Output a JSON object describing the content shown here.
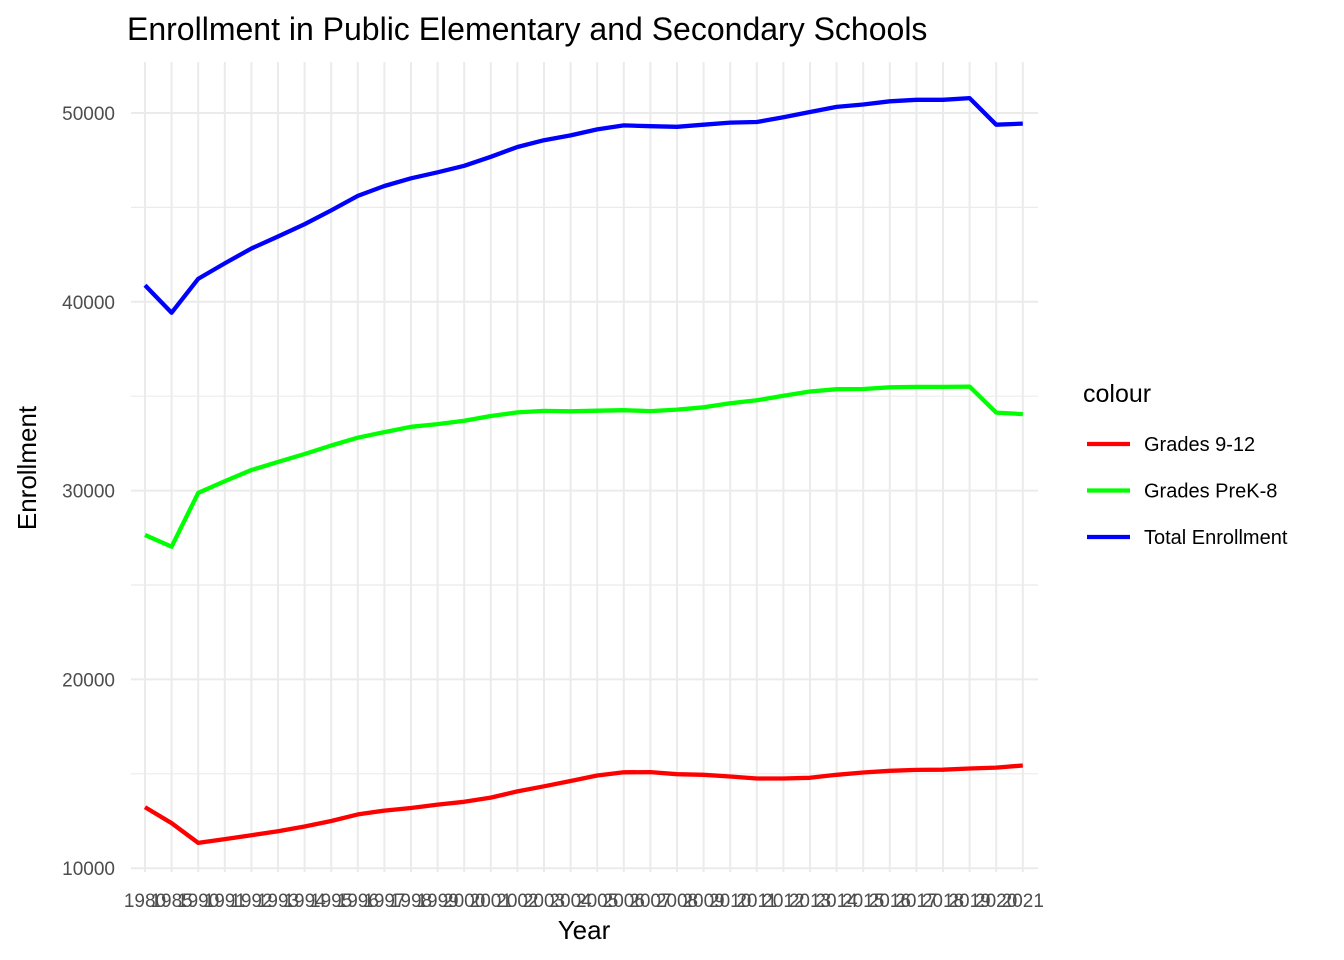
{
  "chart_data": {
    "type": "line",
    "title": "Enrollment in Public Elementary and Secondary Schools",
    "xlabel": "Year",
    "ylabel": "Enrollment",
    "grid": true,
    "legend_placement": "right",
    "legend_title": "colour",
    "ylim": [
      9800,
      52700
    ],
    "y_ticks": [
      10000,
      20000,
      30000,
      40000,
      50000
    ],
    "x": [
      1980,
      1985,
      1990,
      1991,
      1992,
      1993,
      1994,
      1995,
      1996,
      1997,
      1998,
      1999,
      2000,
      2001,
      2002,
      2003,
      2004,
      2005,
      2006,
      2007,
      2008,
      2009,
      2010,
      2011,
      2012,
      2013,
      2014,
      2015,
      2016,
      2017,
      2018,
      2019,
      2020,
      2021
    ],
    "x_tick_labels": [
      "1980",
      "1985",
      "1990",
      "1991",
      "1992",
      "1993",
      "1994",
      "1995",
      "1996",
      "1997",
      "1998",
      "1999",
      "2000",
      "2001",
      "2002",
      "2003",
      "2004",
      "2005",
      "2006",
      "2007",
      "2008",
      "2009",
      "2010",
      "2011",
      "2012",
      "2013",
      "2014",
      "2015",
      "2016",
      "2017",
      "2018",
      "2019",
      "2020",
      "2021"
    ],
    "series": [
      {
        "name": "Grades 9-12",
        "color": "#ff0000",
        "values": [
          13230,
          12390,
          11340,
          11540,
          11750,
          11960,
          12210,
          12500,
          12850,
          13050,
          13190,
          13370,
          13520,
          13740,
          14070,
          14340,
          14620,
          14910,
          15080,
          15090,
          14980,
          14950,
          14860,
          14750,
          14750,
          14790,
          14950,
          15070,
          15160,
          15210,
          15220,
          15280,
          15330,
          15440
        ]
      },
      {
        "name": "Grades PreK-8",
        "color": "#00ff00",
        "values": [
          27650,
          27030,
          29880,
          30500,
          31090,
          31520,
          31940,
          32390,
          32800,
          33100,
          33380,
          33520,
          33700,
          33950,
          34140,
          34220,
          34200,
          34230,
          34260,
          34210,
          34290,
          34410,
          34630,
          34780,
          35020,
          35250,
          35370,
          35380,
          35470,
          35490,
          35490,
          35510,
          34130,
          34050
        ]
      },
      {
        "name": "Total Enrollment",
        "color": "#0000ff",
        "values": [
          40880,
          39420,
          41220,
          42040,
          42820,
          43460,
          44110,
          44840,
          45610,
          46130,
          46540,
          46860,
          47200,
          47680,
          48200,
          48560,
          48810,
          49130,
          49340,
          49300,
          49270,
          49380,
          49490,
          49520,
          49770,
          50050,
          50320,
          50450,
          50620,
          50700,
          50700,
          50790,
          49380,
          49440
        ]
      }
    ]
  }
}
